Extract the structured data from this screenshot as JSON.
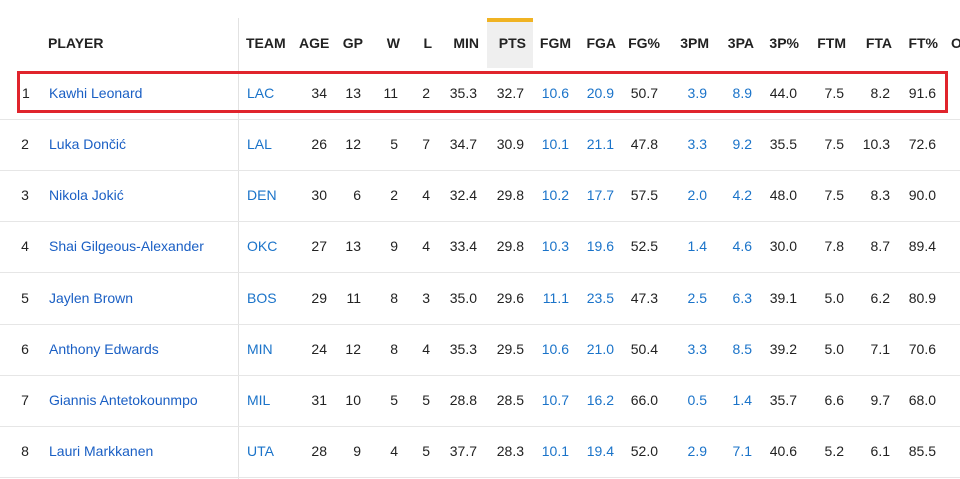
{
  "table": {
    "headers": {
      "player": "PLAYER",
      "team": "TEAM",
      "age": "AGE",
      "gp": "GP",
      "w": "W",
      "l": "L",
      "min": "MIN",
      "pts": "PTS",
      "fgm": "FGM",
      "fga": "FGA",
      "fgp": "FG%",
      "tpm": "3PM",
      "tpa": "3PA",
      "tpp": "3P%",
      "ftm": "FTM",
      "fta": "FTA",
      "ftp": "FT%",
      "cut": "O"
    },
    "rows": [
      {
        "rank": "1",
        "player": "Kawhi Leonard",
        "team": "LAC",
        "age": "34",
        "gp": "13",
        "w": "11",
        "l": "2",
        "min": "35.3",
        "pts": "32.7",
        "fgm": "10.6",
        "fga": "20.9",
        "fgp": "50.7",
        "tpm": "3.9",
        "tpa": "8.9",
        "tpp": "44.0",
        "ftm": "7.5",
        "fta": "8.2",
        "ftp": "91.6"
      },
      {
        "rank": "2",
        "player": "Luka Dončić",
        "team": "LAL",
        "age": "26",
        "gp": "12",
        "w": "5",
        "l": "7",
        "min": "34.7",
        "pts": "30.9",
        "fgm": "10.1",
        "fga": "21.1",
        "fgp": "47.8",
        "tpm": "3.3",
        "tpa": "9.2",
        "tpp": "35.5",
        "ftm": "7.5",
        "fta": "10.3",
        "ftp": "72.6"
      },
      {
        "rank": "3",
        "player": "Nikola Jokić",
        "team": "DEN",
        "age": "30",
        "gp": "6",
        "w": "2",
        "l": "4",
        "min": "32.4",
        "pts": "29.8",
        "fgm": "10.2",
        "fga": "17.7",
        "fgp": "57.5",
        "tpm": "2.0",
        "tpa": "4.2",
        "tpp": "48.0",
        "ftm": "7.5",
        "fta": "8.3",
        "ftp": "90.0"
      },
      {
        "rank": "4",
        "player": "Shai Gilgeous-Alexander",
        "team": "OKC",
        "age": "27",
        "gp": "13",
        "w": "9",
        "l": "4",
        "min": "33.4",
        "pts": "29.8",
        "fgm": "10.3",
        "fga": "19.6",
        "fgp": "52.5",
        "tpm": "1.4",
        "tpa": "4.6",
        "tpp": "30.0",
        "ftm": "7.8",
        "fta": "8.7",
        "ftp": "89.4"
      },
      {
        "rank": "5",
        "player": "Jaylen Brown",
        "team": "BOS",
        "age": "29",
        "gp": "11",
        "w": "8",
        "l": "3",
        "min": "35.0",
        "pts": "29.6",
        "fgm": "11.1",
        "fga": "23.5",
        "fgp": "47.3",
        "tpm": "2.5",
        "tpa": "6.3",
        "tpp": "39.1",
        "ftm": "5.0",
        "fta": "6.2",
        "ftp": "80.9"
      },
      {
        "rank": "6",
        "player": "Anthony Edwards",
        "team": "MIN",
        "age": "24",
        "gp": "12",
        "w": "8",
        "l": "4",
        "min": "35.3",
        "pts": "29.5",
        "fgm": "10.6",
        "fga": "21.0",
        "fgp": "50.4",
        "tpm": "3.3",
        "tpa": "8.5",
        "tpp": "39.2",
        "ftm": "5.0",
        "fta": "7.1",
        "ftp": "70.6"
      },
      {
        "rank": "7",
        "player": "Giannis Antetokounmpo",
        "team": "MIL",
        "age": "31",
        "gp": "10",
        "w": "5",
        "l": "5",
        "min": "28.8",
        "pts": "28.5",
        "fgm": "10.7",
        "fga": "16.2",
        "fgp": "66.0",
        "tpm": "0.5",
        "tpa": "1.4",
        "tpp": "35.7",
        "ftm": "6.6",
        "fta": "9.7",
        "ftp": "68.0"
      },
      {
        "rank": "8",
        "player": "Lauri Markkanen",
        "team": "UTA",
        "age": "28",
        "gp": "9",
        "w": "4",
        "l": "5",
        "min": "37.7",
        "pts": "28.3",
        "fgm": "10.1",
        "fga": "19.4",
        "fgp": "52.0",
        "tpm": "2.9",
        "tpa": "7.1",
        "tpp": "40.6",
        "ftm": "5.2",
        "fta": "6.1",
        "ftp": "85.5"
      }
    ]
  },
  "colors": {
    "link": "#1a73c9",
    "sort_indicator": "#f0b323",
    "highlight": "#e0242c"
  }
}
